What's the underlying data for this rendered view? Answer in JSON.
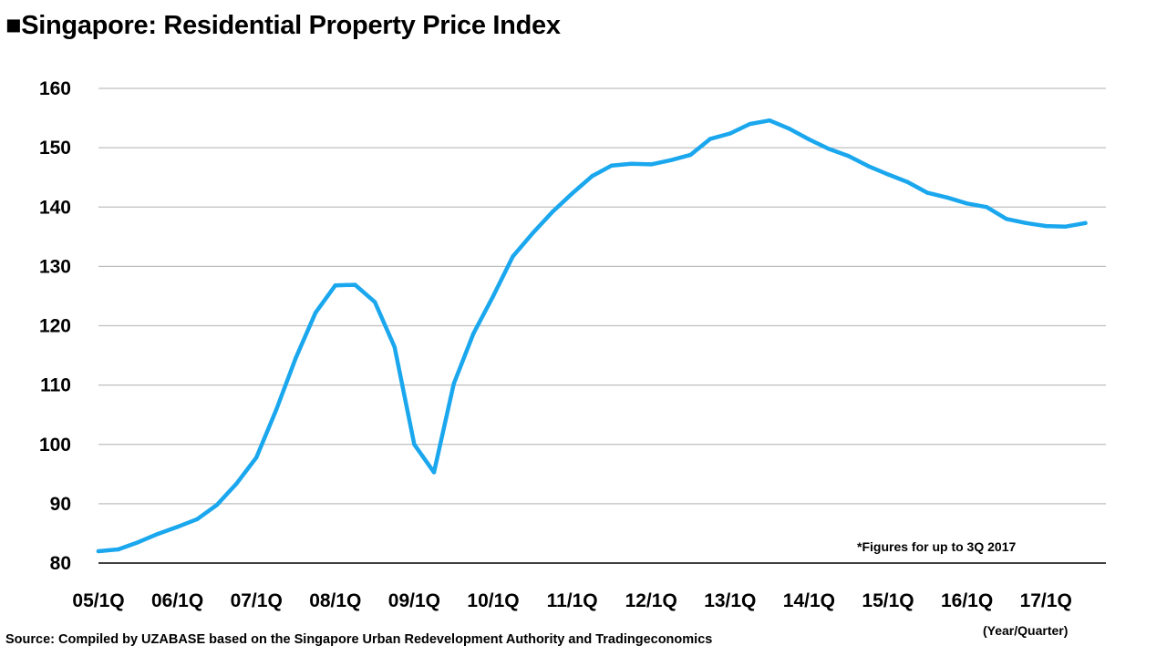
{
  "title": "■Singapore: Residential Property Price Index",
  "note": "*Figures for up to 3Q 2017",
  "x_unit_label": "(Year/Quarter)",
  "source": "Source: Compiled by UZABASE based on the Singapore Urban Redevelopment Authority and Tradingeconomics",
  "colors": {
    "line": "#1AA7EE",
    "grid": "#BFBFBF",
    "axis": "#000000"
  },
  "chart_data": {
    "type": "line",
    "title": "■Singapore: Residential Property Price Index",
    "xlabel": "(Year/Quarter)",
    "ylabel": "",
    "ylim": [
      80,
      160
    ],
    "yticks": [
      80,
      90,
      100,
      110,
      120,
      130,
      140,
      150,
      160
    ],
    "grid": true,
    "xtick_labels": [
      "05/1Q",
      "06/1Q",
      "07/1Q",
      "08/1Q",
      "09/1Q",
      "10/1Q",
      "11/1Q",
      "12/1Q",
      "13/1Q",
      "14/1Q",
      "15/1Q",
      "16/1Q",
      "17/1Q"
    ],
    "x": [
      "05/1Q",
      "05/2Q",
      "05/3Q",
      "05/4Q",
      "06/1Q",
      "06/2Q",
      "06/3Q",
      "06/4Q",
      "07/1Q",
      "07/2Q",
      "07/3Q",
      "07/4Q",
      "08/1Q",
      "08/2Q",
      "08/3Q",
      "08/4Q",
      "09/1Q",
      "09/2Q",
      "09/3Q",
      "09/4Q",
      "10/1Q",
      "10/2Q",
      "10/3Q",
      "10/4Q",
      "11/1Q",
      "11/2Q",
      "11/3Q",
      "11/4Q",
      "12/1Q",
      "12/2Q",
      "12/3Q",
      "12/4Q",
      "13/1Q",
      "13/2Q",
      "13/3Q",
      "13/4Q",
      "14/1Q",
      "14/2Q",
      "14/3Q",
      "14/4Q",
      "15/1Q",
      "15/2Q",
      "15/3Q",
      "15/4Q",
      "16/1Q",
      "16/2Q",
      "16/3Q",
      "16/4Q",
      "17/1Q",
      "17/2Q",
      "17/3Q"
    ],
    "series": [
      {
        "values": [
          82.0,
          82.3,
          83.5,
          84.9,
          86.1,
          87.4,
          89.8,
          93.4,
          97.8,
          105.8,
          114.6,
          122.2,
          126.8,
          126.9,
          124.0,
          116.4,
          100.0,
          95.3,
          110.2,
          118.7,
          125.0,
          131.7,
          135.6,
          139.2,
          142.3,
          145.2,
          147.0,
          147.3,
          147.2,
          147.9,
          148.8,
          151.5,
          152.4,
          154.0,
          154.6,
          153.2,
          151.4,
          149.8,
          148.6,
          146.9,
          145.5,
          144.2,
          142.4,
          141.6,
          140.6,
          140.0,
          138.0,
          137.3,
          136.8,
          136.7,
          137.3
        ]
      }
    ]
  }
}
